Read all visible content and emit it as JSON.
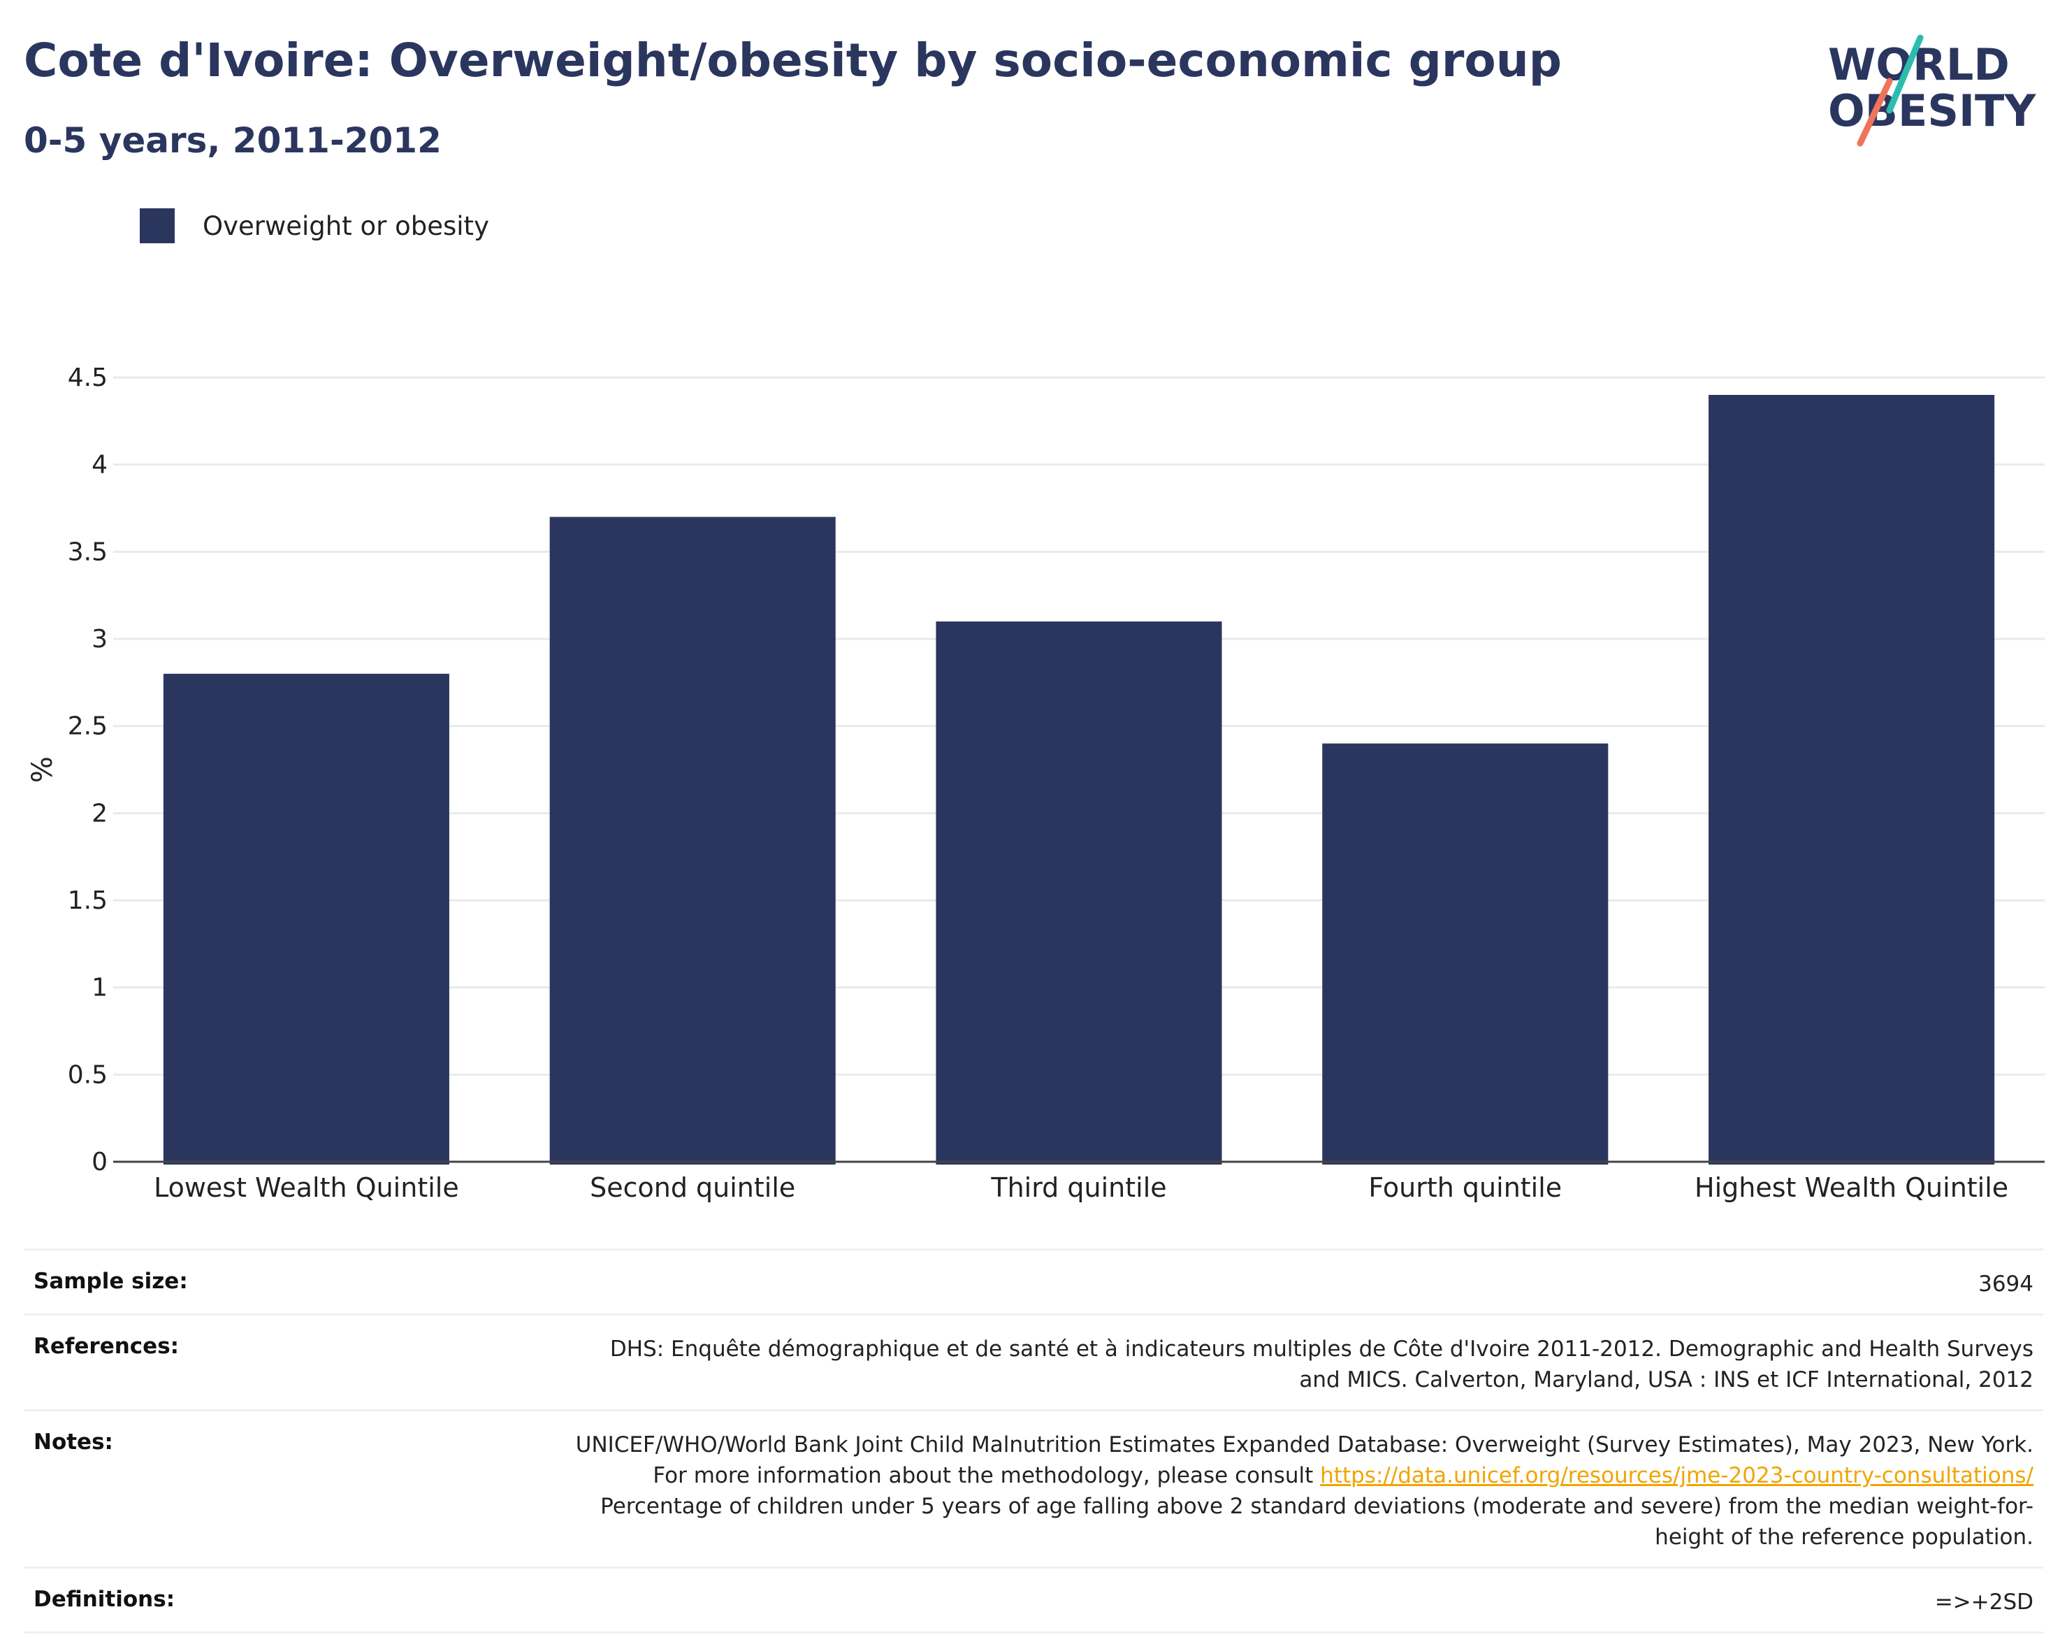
{
  "header": {
    "title": "Cote d'Ivoire: Overweight/obesity by socio-economic group",
    "subtitle": "0-5 years, 2011-2012"
  },
  "logo": {
    "line1": "WORLD",
    "line2": "OBESITY",
    "colors": {
      "text": "#2b365f",
      "slash_top": "#2bbcb0",
      "slash_bottom": "#f0735a"
    }
  },
  "legend": {
    "items": [
      {
        "label": "Overweight or obesity",
        "color": "#2b365f"
      }
    ]
  },
  "chart_data": {
    "type": "bar",
    "categories": [
      "Lowest Wealth Quintile",
      "Second quintile",
      "Third quintile",
      "Fourth quintile",
      "Highest Wealth Quintile"
    ],
    "series": [
      {
        "name": "Overweight or obesity",
        "values": [
          2.8,
          3.7,
          3.1,
          2.4,
          4.4
        ],
        "color": "#2b365f"
      }
    ],
    "ylabel": "%",
    "ylim": [
      0,
      4.5
    ],
    "yticks": [
      "0",
      "0.5",
      "1",
      "1.5",
      "2",
      "2.5",
      "3",
      "3.5",
      "4",
      "4.5"
    ],
    "grid": true,
    "legend_position": "top-left"
  },
  "info_table": {
    "sample_size": {
      "label": "Sample size:",
      "value": "3694"
    },
    "references": {
      "label": "References:",
      "value": "DHS: Enquête démographique et de santé et à indicateurs multiples de Côte d'Ivoire 2011-2012. Demographic and Health Surveys and MICS. Calverton, Maryland, USA : INS et ICF International, 2012"
    },
    "notes": {
      "label": "Notes:",
      "text_before": "UNICEF/WHO/World Bank Joint Child Malnutrition Estimates Expanded Database: Overweight (Survey Estimates), May 2023, New York. For more information about the methodology, please consult ",
      "link": "https://data.unicef.org/resources/jme-2023-country-consultations/",
      "text_after": " Percentage of children under 5 years of age falling above 2 standard deviations (moderate and severe) from the median weight-for-height of the reference population."
    },
    "definitions": {
      "label": "Definitions:",
      "value": "=>+2SD"
    }
  }
}
